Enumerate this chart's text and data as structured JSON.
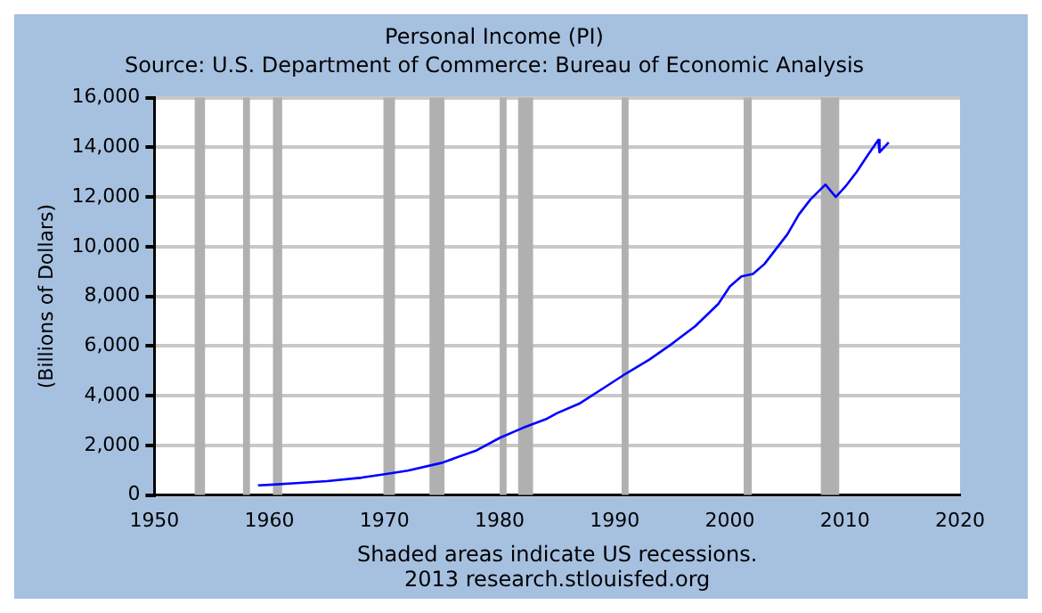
{
  "chart_data": {
    "type": "line",
    "title": "Personal Income (PI)",
    "subtitle": "Source: U.S. Department of Commerce: Bureau of Economic Analysis",
    "ylabel": "(Billions of Dollars)",
    "x": [
      1959,
      1960,
      1962,
      1965,
      1968,
      1970,
      1972,
      1975,
      1978,
      1980,
      1981.5,
      1982,
      1984,
      1985,
      1987,
      1989,
      1991,
      1993,
      1995,
      1997,
      1999,
      2000,
      2001,
      2002,
      2003,
      2004,
      2005,
      2006,
      2007,
      2008.3,
      2009.2,
      2010,
      2011,
      2012,
      2012.9,
      2013,
      2013.8
    ],
    "series": [
      {
        "color": "#0000ff",
        "values": [
          390,
          410,
          470,
          560,
          700,
          840,
          980,
          1300,
          1800,
          2300,
          2600,
          2700,
          3050,
          3300,
          3700,
          4300,
          4900,
          5450,
          6100,
          6800,
          7700,
          8400,
          8800,
          8900,
          9300,
          9900,
          10500,
          11300,
          11900,
          12500,
          12000,
          12400,
          13000,
          13700,
          14300,
          13800,
          14200
        ]
      }
    ],
    "xlim": [
      1950,
      2020
    ],
    "xticks": [
      1950,
      1960,
      1970,
      1980,
      1990,
      2000,
      2010,
      2020
    ],
    "ylim": [
      0,
      16000
    ],
    "yticks": [
      {
        "value": 0,
        "label": "0"
      },
      {
        "value": 2000,
        "label": "2,000"
      },
      {
        "value": 4000,
        "label": "4,000"
      },
      {
        "value": 6000,
        "label": "6,000"
      },
      {
        "value": 8000,
        "label": "8,000"
      },
      {
        "value": 10000,
        "label": "10,000"
      },
      {
        "value": 12000,
        "label": "12,000"
      },
      {
        "value": 14000,
        "label": "14,000"
      },
      {
        "value": 16000,
        "label": "16,000"
      }
    ],
    "grid": "y",
    "marker": "none",
    "line_style": "solid",
    "bands": [
      {
        "axis": "x",
        "from": 1953.5,
        "to": 1954.4,
        "color": "#b0b0b0"
      },
      {
        "axis": "x",
        "from": 1957.7,
        "to": 1958.3,
        "color": "#b0b0b0"
      },
      {
        "axis": "x",
        "from": 1960.3,
        "to": 1961.1,
        "color": "#b0b0b0"
      },
      {
        "axis": "x",
        "from": 1969.9,
        "to": 1970.9,
        "color": "#b0b0b0"
      },
      {
        "axis": "x",
        "from": 1973.9,
        "to": 1975.2,
        "color": "#b0b0b0"
      },
      {
        "axis": "x",
        "from": 1980.0,
        "to": 1980.6,
        "color": "#b0b0b0"
      },
      {
        "axis": "x",
        "from": 1981.6,
        "to": 1982.9,
        "color": "#b0b0b0"
      },
      {
        "axis": "x",
        "from": 1990.6,
        "to": 1991.2,
        "color": "#b0b0b0"
      },
      {
        "axis": "x",
        "from": 2001.2,
        "to": 2001.9,
        "color": "#b0b0b0"
      },
      {
        "axis": "x",
        "from": 2007.9,
        "to": 2009.5,
        "color": "#b0b0b0"
      }
    ],
    "annotations": [
      "Shaded areas indicate US recessions.",
      "2013 research.stlouisfed.org"
    ]
  }
}
